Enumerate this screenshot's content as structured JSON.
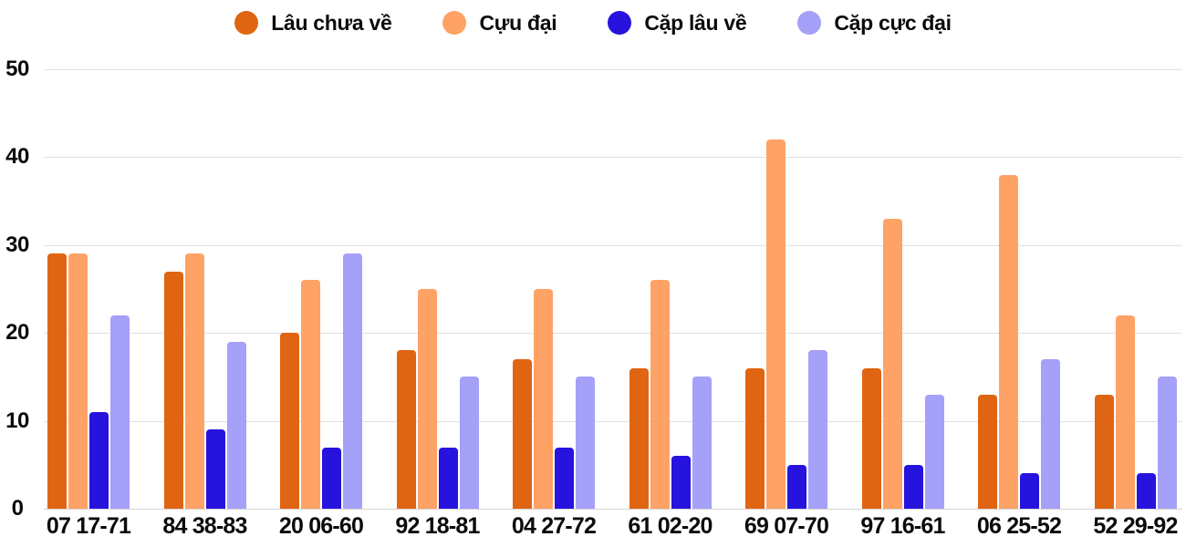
{
  "chart_data": {
    "type": "bar",
    "categories": [
      "07 17-71",
      "84 38-83",
      "20 06-60",
      "92 18-81",
      "04 27-72",
      "61 02-20",
      "69 07-70",
      "97 16-61",
      "06 25-52",
      "52 29-92"
    ],
    "series": [
      {
        "name": "Lâu chưa về",
        "color": "#e06512",
        "values": [
          29,
          27,
          20,
          18,
          17,
          16,
          16,
          16,
          13,
          13
        ]
      },
      {
        "name": "Cựu đại",
        "color": "#ffa266",
        "values": [
          29,
          29,
          26,
          25,
          25,
          26,
          42,
          33,
          38,
          22
        ]
      },
      {
        "name": "Cặp lâu về",
        "color": "#2613dd",
        "values": [
          11,
          9,
          7,
          7,
          7,
          6,
          5,
          5,
          4,
          4
        ]
      },
      {
        "name": "Cặp cực đại",
        "color": "#a5a0f8",
        "values": [
          22,
          19,
          29,
          15,
          15,
          15,
          18,
          13,
          17,
          15
        ]
      }
    ],
    "title": "",
    "xlabel": "",
    "ylabel": "",
    "ylim": [
      0,
      50
    ],
    "yticks": [
      0,
      10,
      20,
      30,
      40,
      50
    ],
    "grid": true,
    "legend_position": "top-center",
    "background": "#ffffff",
    "axis_text_color": "#0b0b0b",
    "gridline_color": "#e0e0e0"
  }
}
